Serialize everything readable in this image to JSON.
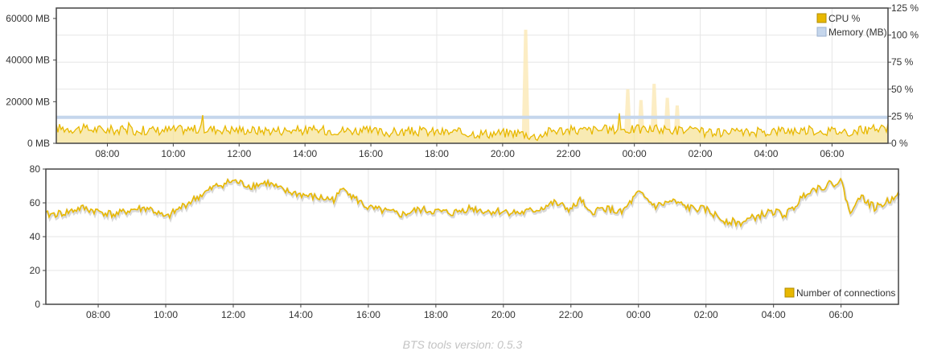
{
  "chart_data": [
    {
      "type": "line",
      "x_ticks": [
        "08:00",
        "10:00",
        "12:00",
        "14:00",
        "16:00",
        "18:00",
        "20:00",
        "22:00",
        "00:00",
        "02:00",
        "04:00",
        "06:00"
      ],
      "x_range_hours": [
        6.45,
        31.7
      ],
      "y_left": {
        "ticks": [
          "0 MB",
          "20000 MB",
          "40000 MB",
          "60000 MB"
        ],
        "range": [
          0,
          65000
        ],
        "unit": "MB"
      },
      "y_right": {
        "ticks": [
          "0 %",
          "25 %",
          "50 %",
          "75 %",
          "100 %",
          "125 %"
        ],
        "range": [
          0,
          125
        ],
        "unit": "%"
      },
      "grid": true,
      "legend": {
        "placement": "top-right",
        "entries": [
          "CPU %",
          "Memory (MB)"
        ]
      },
      "series": [
        {
          "name": "CPU %",
          "axis": "right",
          "color": "#e8b800",
          "fill": "#f6e39a",
          "x_hours": [
            6.5,
            7.5,
            8.5,
            9.5,
            10.5,
            11.5,
            12.5,
            13.5,
            14.5,
            15.5,
            16.5,
            17.5,
            18.5,
            19.5,
            20.5,
            21.0,
            21.5,
            22.5,
            23.5,
            24.5,
            25.5,
            26.5,
            27.5,
            28.5,
            29.5,
            30.5,
            31.7
          ],
          "values": [
            14,
            13,
            12,
            12,
            13,
            13,
            12,
            12,
            12,
            12,
            10,
            11,
            10,
            9,
            10,
            6,
            12,
            12,
            13,
            13,
            12,
            9,
            10,
            12,
            12,
            11,
            14
          ]
        },
        {
          "name": "Memory (MB)",
          "axis": "left",
          "color": "#c5d6ec",
          "x_hours": [
            6.45,
            31.7
          ],
          "values": [
            12500,
            12500
          ]
        },
        {
          "name": "CPU % (other)",
          "axis": "right",
          "color": "#fbe9b5",
          "spikes": [
            {
              "x": 20.7,
              "value": 105
            },
            {
              "x": 23.8,
              "value": 50
            },
            {
              "x": 24.2,
              "value": 40
            },
            {
              "x": 24.6,
              "value": 55
            },
            {
              "x": 25.0,
              "value": 42
            },
            {
              "x": 25.3,
              "value": 35
            }
          ]
        }
      ]
    },
    {
      "type": "line",
      "x_ticks": [
        "08:00",
        "10:00",
        "12:00",
        "14:00",
        "16:00",
        "18:00",
        "20:00",
        "22:00",
        "00:00",
        "02:00",
        "04:00",
        "06:00"
      ],
      "x_range_hours": [
        6.45,
        31.7
      ],
      "y": {
        "ticks": [
          "0",
          "20",
          "40",
          "60",
          "80"
        ],
        "range": [
          0,
          80
        ]
      },
      "grid": true,
      "legend": {
        "placement": "bottom-right",
        "entries": [
          "Number of connections"
        ]
      },
      "series": [
        {
          "name": "Number of connections",
          "color": "#e8b800",
          "x_hours": [
            6.5,
            7.0,
            7.5,
            8.0,
            8.5,
            9.0,
            9.5,
            10.0,
            10.5,
            11.0,
            11.5,
            12.0,
            12.5,
            13.0,
            13.5,
            14.0,
            14.5,
            15.0,
            15.3,
            15.5,
            16.0,
            16.5,
            17.0,
            17.5,
            18.0,
            18.5,
            19.0,
            19.5,
            20.0,
            20.5,
            21.0,
            21.5,
            22.0,
            22.3,
            22.5,
            23.0,
            23.5,
            24.0,
            24.5,
            25.0,
            25.5,
            26.0,
            26.5,
            27.0,
            27.5,
            28.0,
            28.3,
            28.5,
            29.0,
            29.5,
            30.0,
            30.3,
            30.5,
            31.0,
            31.5,
            31.7
          ],
          "values": [
            53,
            54,
            57,
            55,
            53,
            56,
            57,
            51,
            58,
            64,
            70,
            73,
            70,
            72,
            67,
            65,
            63,
            62,
            70,
            64,
            57,
            55,
            53,
            56,
            55,
            54,
            57,
            55,
            55,
            54,
            56,
            60,
            56,
            62,
            54,
            57,
            54,
            66,
            58,
            61,
            57,
            56,
            50,
            48,
            52,
            55,
            53,
            55,
            67,
            70,
            73,
            52,
            65,
            57,
            62,
            68
          ]
        }
      ]
    }
  ],
  "legend1": {
    "cpu_label": "CPU %",
    "mem_label": "Memory (MB)"
  },
  "legend2": {
    "conn_label": "Number of connections"
  },
  "colors": {
    "cpu": "#e8b800",
    "cpu_fill": "#f6e39a",
    "memory": "#c5d6ec",
    "grid": "#e6e6e6",
    "frame": "#444444"
  },
  "footer": {
    "version_text": "BTS tools version: 0.5.3"
  }
}
